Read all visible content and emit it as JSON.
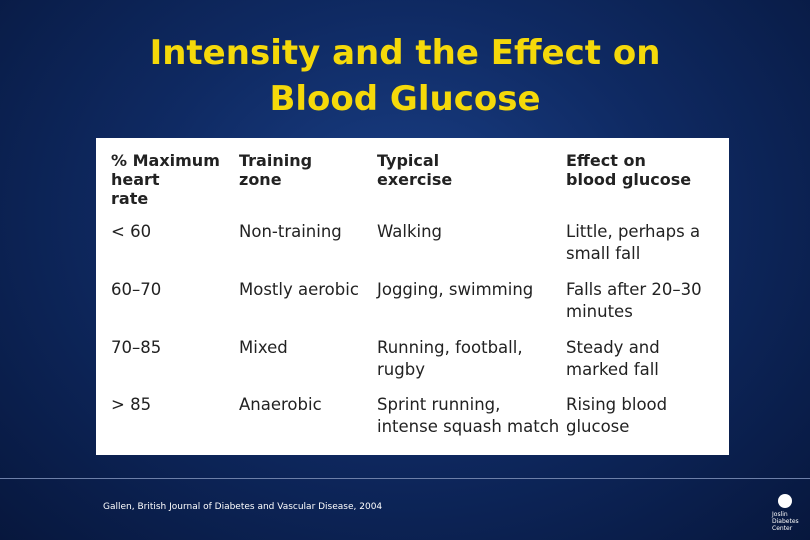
{
  "title": [
    "Intensity and the Effect on",
    "Blood Glucose"
  ],
  "table": {
    "header": [
      [
        "% Maximum",
        "heart",
        "rate"
      ],
      [
        "Training",
        "zone"
      ],
      [
        "Typical",
        "exercise"
      ],
      [
        "Effect on",
        "blood glucose"
      ]
    ],
    "rows": [
      [
        [
          "< 60"
        ],
        [
          "Non-training"
        ],
        [
          "Walking"
        ],
        [
          "Little, perhaps a",
          "small fall"
        ]
      ],
      [
        [
          "60–70"
        ],
        [
          "Mostly aerobic"
        ],
        [
          "Jogging, swimming"
        ],
        [
          "Falls after 20–30",
          "minutes"
        ]
      ],
      [
        [
          "70–85"
        ],
        [
          "Mixed"
        ],
        [
          "Running, football,",
          "rugby"
        ],
        [
          "Steady and",
          "marked fall"
        ]
      ],
      [
        [
          "> 85"
        ],
        [
          "Anaerobic"
        ],
        [
          "Sprint running,",
          "intense squash match"
        ],
        [
          "Rising blood",
          "glucose"
        ]
      ]
    ]
  },
  "citation": "Gallen, British Journal of Diabetes and Vascular Disease, 2004",
  "logo": [
    "Joslin",
    "Diabetes",
    "Center"
  ]
}
